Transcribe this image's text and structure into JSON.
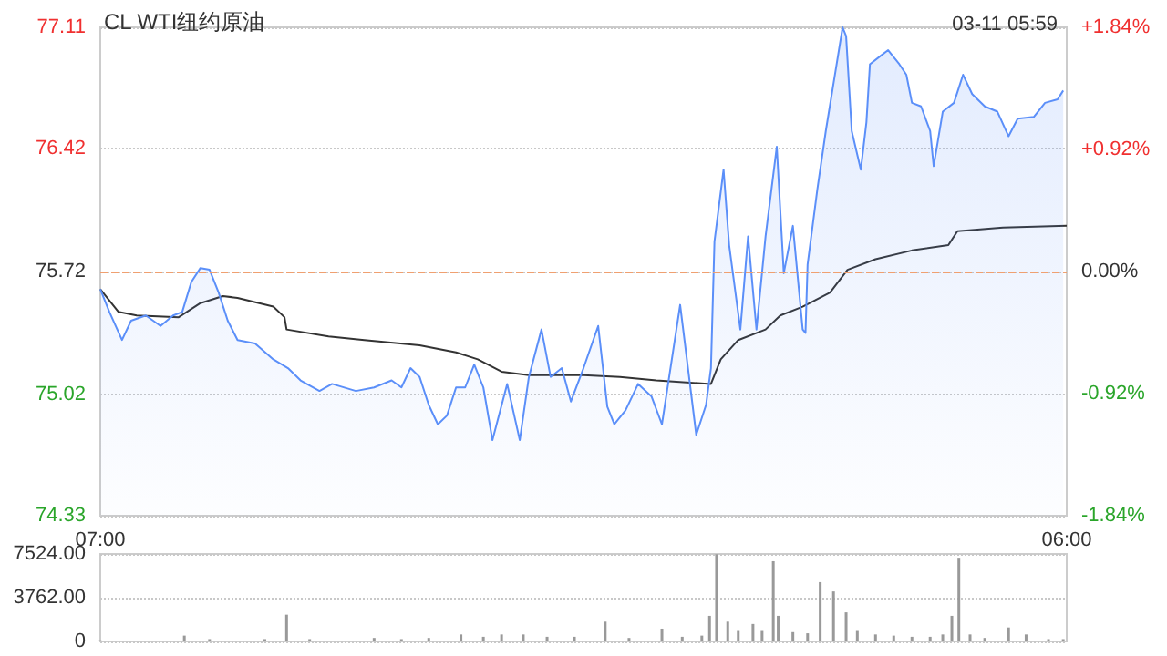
{
  "chart_data": [
    {
      "type": "line",
      "title": "CL WTI纽约原油",
      "annotations": [
        "03-11 05:59"
      ],
      "xlim": [
        "--03-10T07:00",
        "--03-11T06:00"
      ],
      "xticks": [
        {
          "value": "--03-10T07:00",
          "label": "07:00"
        },
        {
          "value": "--03-11T06:00",
          "label": "06:00"
        }
      ],
      "ylim": [
        74.33,
        77.11
      ],
      "yticks": [
        74.33,
        75.02,
        75.72,
        76.42,
        77.11
      ],
      "y2lim": [
        -1.84,
        1.84
      ],
      "y2ticks": [
        {
          "value": -1.84,
          "label": "-1.84%"
        },
        {
          "value": -0.92,
          "label": "-0.92%"
        },
        {
          "value": 0,
          "label": "0.00%"
        },
        {
          "value": 0.92,
          "label": "+0.92%"
        },
        {
          "value": 1.84,
          "label": "+1.84%"
        }
      ],
      "grid": "y",
      "ref_lines": [
        {
          "axis": "y",
          "value": 75.72,
          "color": "#f0a070",
          "line_style": "dashed"
        }
      ],
      "series": [
        {
          "type": "area",
          "color": "#5b8ff9",
          "x": [
            "--03-10T07:00",
            "--03-10T07:13",
            "--03-10T07:31",
            "--03-10T07:44",
            "--03-10T08:05",
            "--03-10T08:26",
            "--03-10T08:44",
            "--03-10T08:57",
            "--03-10T09:10",
            "--03-10T09:23",
            "--03-10T09:36",
            "--03-10T09:49",
            "--03-10T10:02",
            "--03-10T10:16",
            "--03-10T10:41",
            "--03-10T11:07",
            "--03-10T11:28",
            "--03-10T11:46",
            "--03-10T12:13",
            "--03-10T12:31",
            "--03-10T13:05",
            "--03-10T13:31",
            "--03-10T13:56",
            "--03-10T14:10",
            "--03-10T14:23",
            "--03-10T14:36",
            "--03-10T14:49",
            "--03-10T15:02",
            "--03-10T15:15",
            "--03-10T15:28",
            "--03-10T15:41",
            "--03-10T15:54",
            "--03-10T16:07",
            "--03-10T16:20",
            "--03-10T16:41",
            "--03-10T16:59",
            "--03-10T17:12",
            "--03-10T17:30",
            "--03-10T17:43",
            "--03-10T17:59",
            "--03-10T18:12",
            "--03-10T18:30",
            "--03-10T18:51",
            "--03-10T19:04",
            "--03-10T19:14",
            "--03-10T19:30",
            "--03-10T19:48",
            "--03-10T20:07",
            "--03-10T20:22",
            "--03-10T20:48",
            "--03-10T21:11",
            "--03-10T21:25",
            "--03-10T21:32",
            "--03-10T21:37",
            "--03-10T21:50",
            "--03-10T21:58",
            "--03-10T22:14",
            "--03-10T22:25",
            "--03-10T22:37",
            "--03-10T22:50",
            "--03-10T23:06",
            "--03-10T23:16",
            "--03-10T23:29",
            "--03-10T23:43",
            "--03-10T23:47",
            "--03-10T23:50",
            "--03-11T00:04",
            "--03-11T00:16",
            "--03-11T00:29",
            "--03-11T00:40",
            "--03-11T00:45",
            "--03-11T00:53",
            "--03-11T01:06",
            "--03-11T01:14",
            "--03-11T01:19",
            "--03-11T01:35",
            "--03-11T01:45",
            "--03-11T02:01",
            "--03-11T02:11",
            "--03-11T02:19",
            "--03-11T02:32",
            "--03-11T02:45",
            "--03-11T02:50",
            "--03-11T03:03",
            "--03-11T03:19",
            "--03-11T03:32",
            "--03-11T03:45",
            "--03-11T04:03",
            "--03-11T04:21",
            "--03-11T04:37",
            "--03-11T04:50",
            "--03-11T05:13",
            "--03-11T05:29",
            "--03-11T05:47",
            "--03-11T05:55"
          ],
          "values": [
            75.62,
            75.49,
            75.33,
            75.44,
            75.47,
            75.41,
            75.47,
            75.49,
            75.66,
            75.74,
            75.73,
            75.6,
            75.44,
            75.33,
            75.31,
            75.22,
            75.17,
            75.1,
            75.04,
            75.08,
            75.04,
            75.06,
            75.1,
            75.06,
            75.17,
            75.12,
            74.96,
            74.85,
            74.9,
            75.06,
            75.06,
            75.19,
            75.06,
            74.76,
            75.08,
            74.76,
            75.12,
            75.39,
            75.12,
            75.17,
            74.98,
            75.17,
            75.41,
            74.95,
            74.85,
            74.93,
            75.08,
            75.01,
            74.85,
            75.53,
            74.79,
            74.96,
            75.17,
            75.89,
            76.3,
            75.87,
            75.39,
            75.92,
            75.39,
            75.92,
            76.43,
            75.71,
            75.98,
            75.39,
            75.37,
            75.76,
            76.19,
            76.52,
            76.84,
            77.11,
            77.06,
            76.52,
            76.3,
            76.57,
            76.9,
            76.95,
            76.98,
            76.9,
            76.84,
            76.68,
            76.66,
            76.52,
            76.32,
            76.63,
            76.68,
            76.84,
            76.73,
            76.66,
            76.63,
            76.49,
            76.59,
            76.6,
            76.68,
            76.7,
            76.75
          ]
        },
        {
          "type": "line",
          "color": "#333333",
          "x": [
            "--03-10T07:00",
            "--03-10T07:26",
            "--03-10T07:52",
            "--03-10T08:52",
            "--03-10T09:23",
            "--03-10T09:55",
            "--03-10T10:16",
            "--03-10T11:07",
            "--03-10T11:23",
            "--03-10T11:26",
            "--03-10T12:26",
            "--03-10T13:17",
            "--03-10T14:36",
            "--03-10T15:28",
            "--03-10T15:59",
            "--03-10T16:33",
            "--03-10T17:12",
            "--03-10T18:30",
            "--03-10T19:22",
            "--03-10T20:14",
            "--03-10T21:32",
            "--03-10T21:46",
            "--03-10T22:11",
            "--03-10T22:50",
            "--03-10T23:11",
            "--03-10T23:43",
            "--03-11T00:22",
            "--03-11T00:47",
            "--03-11T01:27",
            "--03-11T02:19",
            "--03-11T03:11",
            "--03-11T03:24",
            "--03-11T04:29",
            "--03-11T06:00"
          ],
          "values": [
            75.62,
            75.49,
            75.47,
            75.46,
            75.54,
            75.58,
            75.57,
            75.52,
            75.46,
            75.39,
            75.35,
            75.33,
            75.3,
            75.26,
            75.22,
            75.15,
            75.13,
            75.13,
            75.12,
            75.1,
            75.08,
            75.22,
            75.33,
            75.39,
            75.47,
            75.52,
            75.6,
            75.73,
            75.79,
            75.84,
            75.87,
            75.95,
            75.97,
            75.98
          ]
        }
      ]
    },
    {
      "type": "bar",
      "xlim": [
        "--03-10T07:00",
        "--03-11T06:00"
      ],
      "ylim": [
        0,
        7524
      ],
      "yticks": [
        0,
        {
          "value": 3762,
          "label": "3762.00"
        },
        {
          "value": 7524,
          "label": "7524.00"
        }
      ],
      "grid": "y",
      "tick_labels": "y",
      "color": "#999999",
      "x": [
        "--03-10T07:00",
        "--03-10T07:39",
        "--03-10T08:18",
        "--03-10T09:00",
        "--03-10T09:36",
        "--03-10T10:16",
        "--03-10T10:55",
        "--03-10T11:26",
        "--03-10T11:59",
        "--03-10T12:38",
        "--03-10T13:31",
        "--03-10T14:10",
        "--03-10T14:49",
        "--03-10T15:35",
        "--03-10T16:07",
        "--03-10T16:33",
        "--03-10T17:04",
        "--03-10T17:38",
        "--03-10T18:17",
        "--03-10T19:01",
        "--03-10T19:35",
        "--03-10T20:22",
        "--03-10T20:51",
        "--03-10T21:19",
        "--03-10T21:30",
        "--03-10T21:40",
        "--03-10T21:56",
        "--03-10T22:11",
        "--03-10T22:32",
        "--03-10T22:45",
        "--03-10T23:01",
        "--03-10T23:08",
        "--03-10T23:29",
        "--03-10T23:50",
        "--03-11T00:08",
        "--03-11T00:27",
        "--03-11T00:45",
        "--03-11T01:01",
        "--03-11T01:27",
        "--03-11T01:53",
        "--03-11T02:19",
        "--03-11T02:45",
        "--03-11T03:03",
        "--03-11T03:16",
        "--03-11T03:26",
        "--03-11T03:42",
        "--03-11T04:03",
        "--03-11T04:37",
        "--03-11T05:02",
        "--03-11T05:34",
        "--03-11T05:55"
      ],
      "values": [
        100,
        null,
        null,
        500,
        200,
        null,
        200,
        2300,
        200,
        null,
        300,
        200,
        300,
        600,
        400,
        600,
        600,
        400,
        400,
        1700,
        300,
        1100,
        400,
        500,
        2200,
        7500,
        1700,
        900,
        1500,
        900,
        6900,
        2200,
        800,
        700,
        5100,
        4300,
        2500,
        900,
        600,
        500,
        400,
        400,
        600,
        2200,
        7200,
        600,
        300,
        1200,
        600,
        200,
        200
      ]
    }
  ]
}
